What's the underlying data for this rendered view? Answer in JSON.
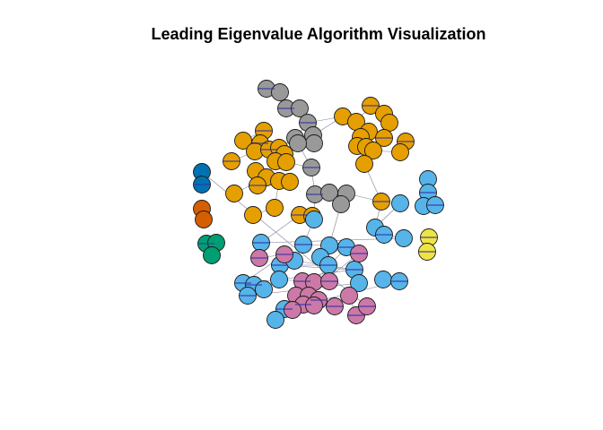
{
  "title": "Leading Eigenvalue Algorithm Visualization",
  "colors": {
    "orange": "#E69F00",
    "sky_blue": "#56B4E9",
    "grey": "#999999",
    "purple": "#CC79A7",
    "blue": "#0072B2",
    "vermillion": "#D55E00",
    "green": "#009E73",
    "yellow": "#F0E442",
    "edge": "#7f7f9a",
    "label": "#3333aa"
  }
}
